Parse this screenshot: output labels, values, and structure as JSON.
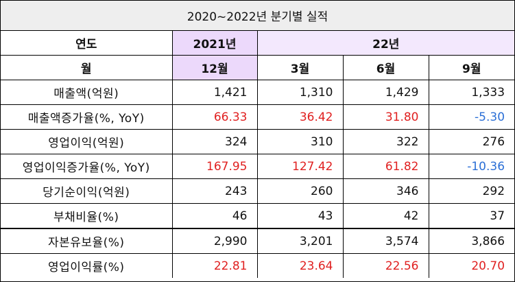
{
  "title": "2020~2022년 분기별 실적",
  "header": {
    "year_label": "연도",
    "year_2021": "2021년",
    "year_2022": "22년",
    "month_label": "월",
    "months": [
      "12월",
      "3월",
      "6월",
      "9월"
    ]
  },
  "rows": [
    {
      "label": "매출액(억원)",
      "values": [
        "1,421",
        "1,310",
        "1,429",
        "1,333"
      ],
      "colors": [
        "",
        "",
        "",
        ""
      ]
    },
    {
      "label": "매출액증가율(%, YoY)",
      "values": [
        "66.33",
        "36.42",
        "31.80",
        "-5.30"
      ],
      "colors": [
        "red",
        "red",
        "red",
        "blue"
      ]
    },
    {
      "label": "영업이익(억원)",
      "values": [
        "324",
        "310",
        "322",
        "276"
      ],
      "colors": [
        "",
        "",
        "",
        ""
      ]
    },
    {
      "label": "영업이익증가율(%, YoY)",
      "values": [
        "167.95",
        "127.42",
        "61.82",
        "-10.36"
      ],
      "colors": [
        "red",
        "red",
        "red",
        "blue"
      ]
    },
    {
      "label": "당기순이익(억원)",
      "values": [
        "243",
        "260",
        "346",
        "292"
      ],
      "colors": [
        "",
        "",
        "",
        ""
      ]
    },
    {
      "label": "부채비율(%)",
      "values": [
        "46",
        "43",
        "42",
        "37"
      ],
      "colors": [
        "",
        "",
        "",
        ""
      ]
    },
    {
      "label": "자본유보율(%)",
      "values": [
        "2,990",
        "3,201",
        "3,574",
        "3,866"
      ],
      "colors": [
        "",
        "",
        "",
        ""
      ]
    },
    {
      "label": "영업이익률(%)",
      "values": [
        "22.81",
        "23.64",
        "22.56",
        "20.70"
      ],
      "colors": [
        "red",
        "red",
        "red",
        "red"
      ]
    }
  ],
  "palette": {
    "header_lavender": "#ecd9fb",
    "positive": "#e02020",
    "negative": "#2b6fd6",
    "title_bg": "#eeeeee"
  }
}
